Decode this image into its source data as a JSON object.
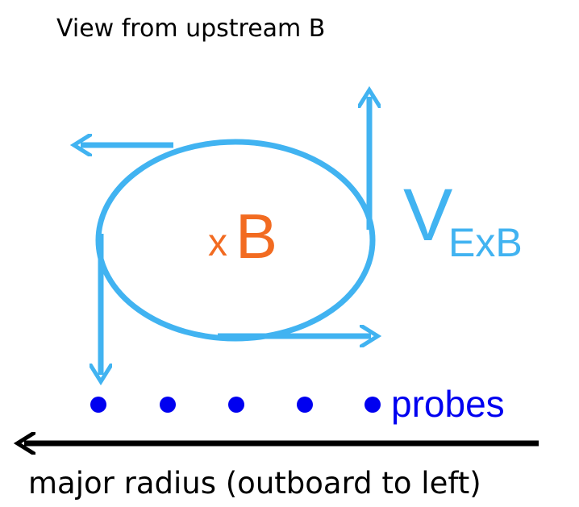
{
  "title": "View from upstream B",
  "field_label": {
    "symbol": "x",
    "name": "B"
  },
  "velocity_label": {
    "main": "V",
    "subscript": "ExB"
  },
  "probes_label": "probes",
  "axis_label": "major radius (outboard to left)"
}
